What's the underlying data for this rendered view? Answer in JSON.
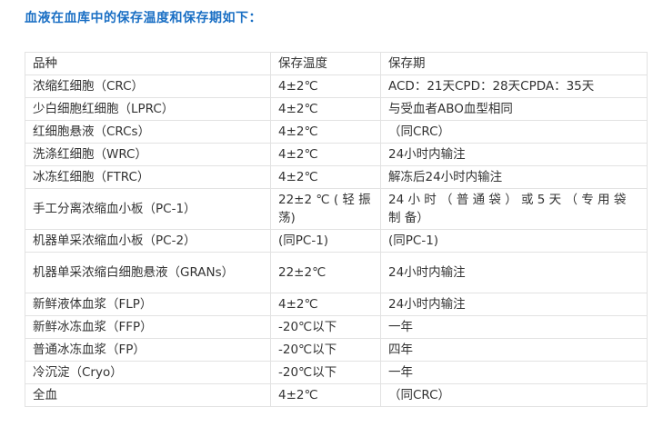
{
  "title": "血液在血库中的保存温度和保存期如下：",
  "table": {
    "headers": [
      "品种",
      "保存温度",
      "保存期"
    ],
    "rows": [
      [
        "浓缩红细胞（CRC）",
        "4±2℃",
        "ACD：21天CPD：28天CPDA：35天"
      ],
      [
        "少白细胞红细胞（LPRC）",
        "4±2℃",
        "与受血者ABO血型相同"
      ],
      [
        "红细胞悬液（CRCs）",
        "4±2℃",
        "（同CRC）"
      ],
      [
        "洗涤红细胞（WRC）",
        "4±2℃",
        "24小时内输注"
      ],
      [
        "冰冻红细胞（FTRC）",
        "4±2℃",
        "解冻后24小时内输注"
      ],
      [
        "手工分离浓缩血小板（PC-1）",
        "22±2 ℃ ( 轻 振 荡)",
        "24 小 时 （ 普 通 袋 ） 或 5 天 （ 专 用 袋 制 备）"
      ],
      [
        "机器单采浓缩血小板（PC-2）",
        "(同PC-1)",
        "(同PC-1)"
      ],
      [
        "机器单采浓缩白细胞悬液（GRANs）",
        "22±2℃",
        "24小时内输注"
      ],
      [
        "新鲜液体血浆（FLP）",
        "4±2℃",
        "24小时内输注"
      ],
      [
        "新鲜冰冻血浆（FFP）",
        "-20℃以下",
        "一年"
      ],
      [
        "普通冰冻血浆（FP）",
        "-20℃以下",
        "四年"
      ],
      [
        "冷沉淀（Cryo）",
        "-20℃以下",
        "一年"
      ],
      [
        "全血",
        "4±2℃",
        "（同CRC）"
      ]
    ]
  },
  "colors": {
    "title": "#1a6fc4",
    "text": "#333333",
    "border": "#e2e2e2"
  }
}
